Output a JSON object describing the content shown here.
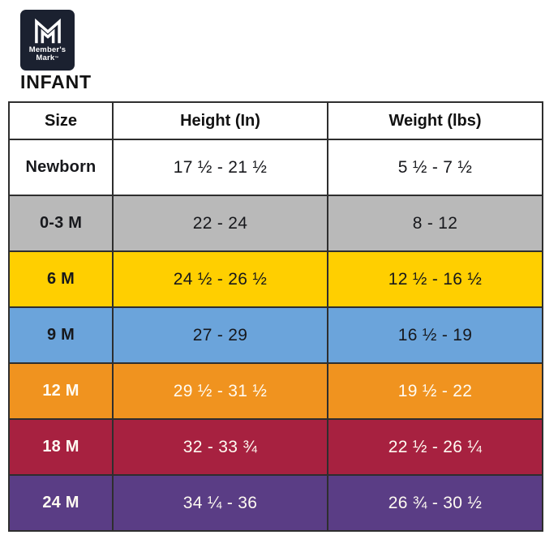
{
  "logo": {
    "brand_line1": "Member's",
    "brand_line2": "Mark",
    "trademark": "™",
    "bg_color": "#1B2130",
    "mark_color": "#FFFFFF"
  },
  "page_title": "INFANT",
  "table": {
    "headers": [
      "Size",
      "Height (In)",
      "Weight (lbs)"
    ],
    "rows": [
      {
        "size": "Newborn",
        "height": "17 ½ - 21 ½",
        "weight": "5 ½ - 7 ½",
        "bg": "#FFFFFF",
        "fg": "#17181C"
      },
      {
        "size": "0-3 M",
        "height": "22 - 24",
        "weight": "8 - 12",
        "bg": "#B9B9B9",
        "fg": "#17181C"
      },
      {
        "size": "6 M",
        "height": "24 ½ - 26 ½",
        "weight": "12 ½ - 16 ½",
        "bg": "#FFCF00",
        "fg": "#17181C"
      },
      {
        "size": "9 M",
        "height": "27 - 29",
        "weight": "16 ½ - 19",
        "bg": "#6BA4DB",
        "fg": "#17181C"
      },
      {
        "size": "12 M",
        "height": "29 ½ - 31 ½",
        "weight": "19 ½ - 22",
        "bg": "#F0931F",
        "fg": "#FFFBF2"
      },
      {
        "size": "18 M",
        "height": "32 - 33 ¾",
        "weight": "22 ½ - 26 ¼",
        "bg": "#A72140",
        "fg": "#FFFBF2"
      },
      {
        "size": "24 M",
        "height": "34 ¼ - 36",
        "weight": "26 ¾ - 30 ½",
        "bg": "#5A3D85",
        "fg": "#FFFBF2"
      }
    ]
  },
  "chart_data": {
    "type": "table",
    "title": "INFANT",
    "columns": [
      "Size",
      "Height (In)",
      "Weight (lbs)"
    ],
    "rows": [
      [
        "Newborn",
        "17 ½ - 21 ½",
        "5 ½ - 7 ½"
      ],
      [
        "0-3 M",
        "22 - 24",
        "8 - 12"
      ],
      [
        "6 M",
        "24 ½ - 26 ½",
        "12 ½ - 16 ½"
      ],
      [
        "9 M",
        "27 - 29",
        "16 ½ - 19"
      ],
      [
        "12 M",
        "29 ½ - 31 ½",
        "19 ½ - 22"
      ],
      [
        "18 M",
        "32 - 33 ¾",
        "22 ½ - 26 ¼"
      ],
      [
        "24 M",
        "34 ¼ - 36",
        "26 ¾ - 30 ½"
      ]
    ],
    "row_background_colors": [
      "#FFFFFF",
      "#B9B9B9",
      "#FFCF00",
      "#6BA4DB",
      "#F0931F",
      "#A72140",
      "#5A3D85"
    ]
  }
}
